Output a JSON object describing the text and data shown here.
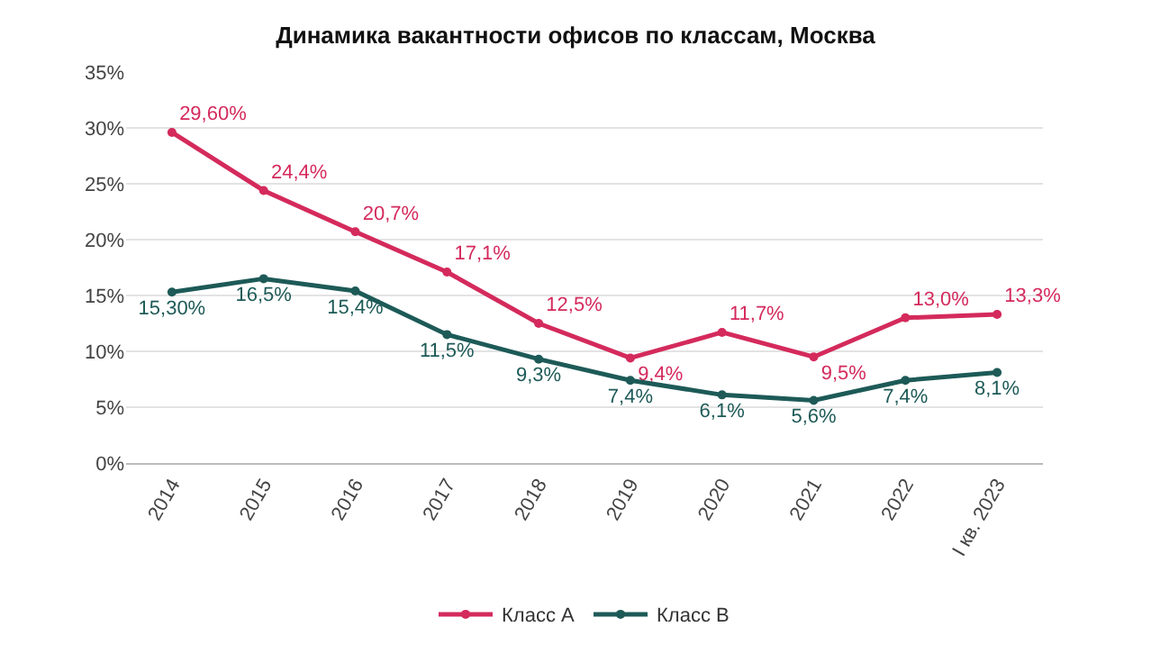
{
  "chart_data": {
    "type": "line",
    "title": "Динамика вакантности офисов по классам, Москва",
    "categories": [
      "2014",
      "2015",
      "2016",
      "2017",
      "2018",
      "2019",
      "2020",
      "2021",
      "2022",
      "I кв. 2023"
    ],
    "series": [
      {
        "name": "Класс А",
        "color": "#d42a5c",
        "values": [
          29.6,
          24.4,
          20.7,
          17.1,
          12.5,
          9.4,
          11.7,
          9.5,
          13.0,
          13.3
        ],
        "value_labels": [
          "29,60%",
          "24,4%",
          "20,7%",
          "17,1%",
          "12,5%",
          "9,4%",
          "11,7%",
          "9,5%",
          "13,0%",
          "13,3%"
        ]
      },
      {
        "name": "Класс B",
        "color": "#1d5a57",
        "values": [
          15.3,
          16.5,
          15.4,
          11.5,
          9.3,
          7.4,
          6.1,
          5.6,
          7.4,
          8.1
        ],
        "value_labels": [
          "15,30%",
          "16,5%",
          "15,4%",
          "11,5%",
          "9,3%",
          "7,4%",
          "6,1%",
          "5,6%",
          "7,4%",
          "8,1%"
        ]
      }
    ],
    "ylim": [
      0,
      35
    ],
    "yticks": [
      {
        "value": 0,
        "label": "0%"
      },
      {
        "value": 5,
        "label": "5%"
      },
      {
        "value": 10,
        "label": "10%"
      },
      {
        "value": 15,
        "label": "15%"
      },
      {
        "value": 20,
        "label": "20%"
      },
      {
        "value": 25,
        "label": "25%"
      },
      {
        "value": 30,
        "label": "30%"
      },
      {
        "value": 35,
        "label": "35%"
      }
    ],
    "grid": "y",
    "legend": "bottom",
    "marker": "circle",
    "line_style": "solid"
  }
}
